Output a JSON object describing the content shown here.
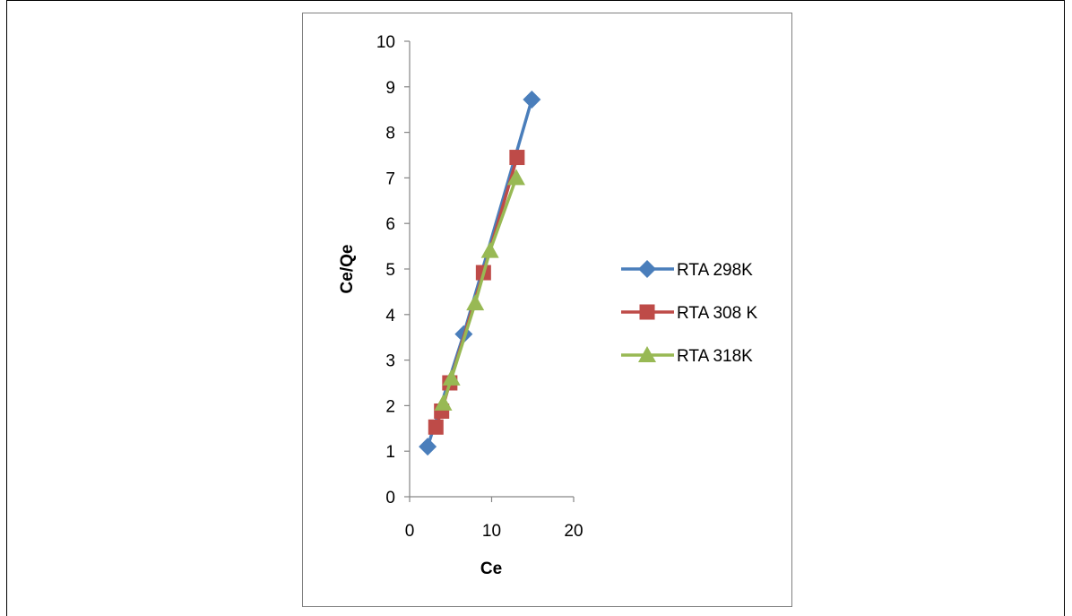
{
  "chart_data": {
    "type": "line",
    "title": "",
    "xlabel": "Ce",
    "ylabel": "Ce/Qe",
    "xlim": [
      0,
      20
    ],
    "ylim": [
      0,
      10
    ],
    "x_ticks": [
      0,
      10,
      20
    ],
    "y_ticks": [
      0,
      1,
      2,
      3,
      4,
      5,
      6,
      7,
      8,
      9,
      10
    ],
    "grid": false,
    "legend_position": "right",
    "series": [
      {
        "name": "RTA 298K",
        "color": "#4a7ebb",
        "marker": "diamond",
        "points": [
          [
            2.2,
            1.1
          ],
          [
            6.6,
            3.57
          ],
          [
            14.9,
            8.72
          ]
        ]
      },
      {
        "name": "RTA 308 K",
        "color": "#be4b48",
        "marker": "square",
        "points": [
          [
            3.2,
            1.53
          ],
          [
            3.9,
            1.88
          ],
          [
            4.9,
            2.5
          ],
          [
            9.0,
            4.92
          ],
          [
            13.1,
            7.45
          ]
        ]
      },
      {
        "name": "RTA 318K",
        "color": "#98b954",
        "marker": "triangle",
        "points": [
          [
            4.1,
            2.05
          ],
          [
            5.1,
            2.6
          ],
          [
            8.0,
            4.25
          ],
          [
            9.8,
            5.4
          ],
          [
            13.0,
            7.0
          ]
        ]
      }
    ]
  }
}
